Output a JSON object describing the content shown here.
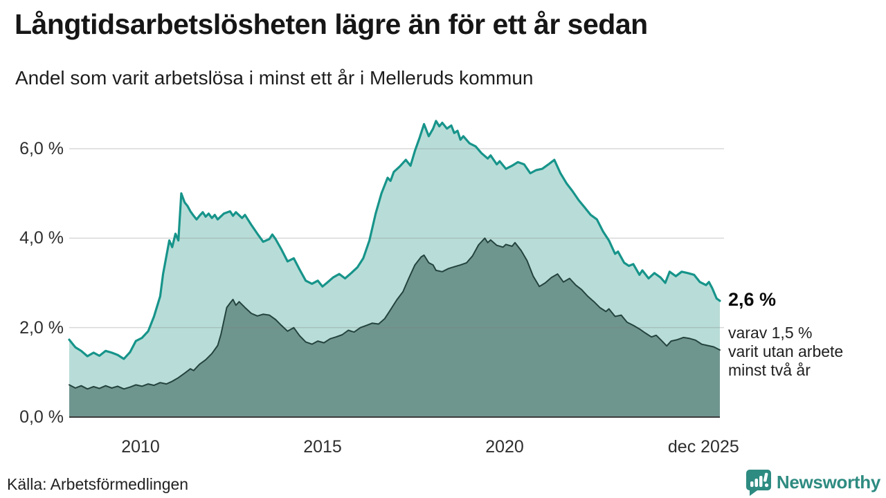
{
  "title": "Långtidsarbetslösheten lägre än för ett år sedan",
  "subtitle": "Andel som varit arbetslösa i minst ett år i Melleruds kommun",
  "source": "Källa: Arbetsförmedlingen",
  "branding": {
    "name": "Newsworthy",
    "color": "#2E8B81"
  },
  "annotation": {
    "value_label": "2,6 %",
    "detail_line1": "varav 1,5 %",
    "detail_line2": "varit utan arbete",
    "detail_line3": "minst två år"
  },
  "chart_data": {
    "type": "area",
    "title": "Långtidsarbetslösheten lägre än för ett år sedan",
    "subtitle": "Andel som varit arbetslösa i minst ett år i Melleruds kommun",
    "unit": "%",
    "grid": true,
    "legend": "none",
    "x_axis": {
      "range": [
        2008.04,
        2025.92
      ],
      "ticks": [
        {
          "t": 2010.0,
          "label": "2010"
        },
        {
          "t": 2015.0,
          "label": "2015"
        },
        {
          "t": 2020.0,
          "label": "2020"
        },
        {
          "t": 2025.92,
          "label": "dec 2025"
        }
      ]
    },
    "y_axis": {
      "range": [
        0,
        7
      ],
      "ticks": [
        {
          "v": 0,
          "label": "0,0 %"
        },
        {
          "v": 2,
          "label": "2,0 %"
        },
        {
          "v": 4,
          "label": "4,0 %"
        },
        {
          "v": 6,
          "label": "6,0 %"
        }
      ]
    },
    "series": [
      {
        "name": "Andel arbetslösa minst ett år",
        "line_color": "#17948A",
        "fill_color": "#B8DDD8",
        "line_width": 3.2,
        "end_value": 2.6,
        "points": [
          [
            2008.04,
            1.73
          ],
          [
            2008.21,
            1.56
          ],
          [
            2008.37,
            1.48
          ],
          [
            2008.54,
            1.36
          ],
          [
            2008.71,
            1.44
          ],
          [
            2008.87,
            1.37
          ],
          [
            2009.04,
            1.48
          ],
          [
            2009.21,
            1.44
          ],
          [
            2009.37,
            1.39
          ],
          [
            2009.54,
            1.3
          ],
          [
            2009.71,
            1.45
          ],
          [
            2009.87,
            1.7
          ],
          [
            2010.04,
            1.77
          ],
          [
            2010.21,
            1.92
          ],
          [
            2010.37,
            2.25
          ],
          [
            2010.54,
            2.7
          ],
          [
            2010.62,
            3.2
          ],
          [
            2010.71,
            3.6
          ],
          [
            2010.79,
            3.95
          ],
          [
            2010.87,
            3.8
          ],
          [
            2010.96,
            4.1
          ],
          [
            2011.04,
            3.95
          ],
          [
            2011.12,
            5.0
          ],
          [
            2011.21,
            4.8
          ],
          [
            2011.29,
            4.72
          ],
          [
            2011.37,
            4.6
          ],
          [
            2011.46,
            4.5
          ],
          [
            2011.54,
            4.42
          ],
          [
            2011.62,
            4.5
          ],
          [
            2011.71,
            4.58
          ],
          [
            2011.79,
            4.48
          ],
          [
            2011.87,
            4.55
          ],
          [
            2011.96,
            4.45
          ],
          [
            2012.04,
            4.52
          ],
          [
            2012.12,
            4.42
          ],
          [
            2012.29,
            4.55
          ],
          [
            2012.46,
            4.6
          ],
          [
            2012.54,
            4.5
          ],
          [
            2012.62,
            4.58
          ],
          [
            2012.79,
            4.45
          ],
          [
            2012.87,
            4.52
          ],
          [
            2013.04,
            4.3
          ],
          [
            2013.21,
            4.1
          ],
          [
            2013.37,
            3.92
          ],
          [
            2013.54,
            3.98
          ],
          [
            2013.62,
            4.08
          ],
          [
            2013.71,
            3.98
          ],
          [
            2013.87,
            3.75
          ],
          [
            2014.04,
            3.48
          ],
          [
            2014.21,
            3.55
          ],
          [
            2014.37,
            3.3
          ],
          [
            2014.54,
            3.05
          ],
          [
            2014.71,
            2.98
          ],
          [
            2014.87,
            3.05
          ],
          [
            2015.0,
            2.92
          ],
          [
            2015.12,
            3.0
          ],
          [
            2015.29,
            3.12
          ],
          [
            2015.46,
            3.2
          ],
          [
            2015.62,
            3.1
          ],
          [
            2015.79,
            3.22
          ],
          [
            2015.96,
            3.35
          ],
          [
            2016.12,
            3.55
          ],
          [
            2016.29,
            3.95
          ],
          [
            2016.46,
            4.55
          ],
          [
            2016.62,
            5.0
          ],
          [
            2016.79,
            5.35
          ],
          [
            2016.87,
            5.28
          ],
          [
            2016.96,
            5.48
          ],
          [
            2017.12,
            5.6
          ],
          [
            2017.29,
            5.75
          ],
          [
            2017.42,
            5.62
          ],
          [
            2017.54,
            5.95
          ],
          [
            2017.67,
            6.25
          ],
          [
            2017.79,
            6.55
          ],
          [
            2017.92,
            6.28
          ],
          [
            2018.04,
            6.45
          ],
          [
            2018.12,
            6.62
          ],
          [
            2018.21,
            6.5
          ],
          [
            2018.29,
            6.58
          ],
          [
            2018.42,
            6.45
          ],
          [
            2018.54,
            6.52
          ],
          [
            2018.62,
            6.35
          ],
          [
            2018.71,
            6.4
          ],
          [
            2018.79,
            6.2
          ],
          [
            2018.87,
            6.28
          ],
          [
            2019.04,
            6.12
          ],
          [
            2019.21,
            6.05
          ],
          [
            2019.37,
            5.9
          ],
          [
            2019.54,
            5.78
          ],
          [
            2019.62,
            5.85
          ],
          [
            2019.79,
            5.65
          ],
          [
            2019.87,
            5.72
          ],
          [
            2020.04,
            5.55
          ],
          [
            2020.21,
            5.62
          ],
          [
            2020.37,
            5.7
          ],
          [
            2020.54,
            5.65
          ],
          [
            2020.71,
            5.45
          ],
          [
            2020.87,
            5.52
          ],
          [
            2021.04,
            5.55
          ],
          [
            2021.21,
            5.65
          ],
          [
            2021.37,
            5.75
          ],
          [
            2021.54,
            5.45
          ],
          [
            2021.71,
            5.22
          ],
          [
            2021.87,
            5.05
          ],
          [
            2022.04,
            4.85
          ],
          [
            2022.21,
            4.68
          ],
          [
            2022.37,
            4.52
          ],
          [
            2022.54,
            4.42
          ],
          [
            2022.71,
            4.15
          ],
          [
            2022.87,
            3.95
          ],
          [
            2023.04,
            3.65
          ],
          [
            2023.12,
            3.7
          ],
          [
            2023.29,
            3.45
          ],
          [
            2023.42,
            3.38
          ],
          [
            2023.54,
            3.42
          ],
          [
            2023.71,
            3.18
          ],
          [
            2023.79,
            3.28
          ],
          [
            2023.96,
            3.1
          ],
          [
            2024.12,
            3.22
          ],
          [
            2024.29,
            3.12
          ],
          [
            2024.42,
            3.0
          ],
          [
            2024.54,
            3.25
          ],
          [
            2024.71,
            3.15
          ],
          [
            2024.87,
            3.25
          ],
          [
            2025.04,
            3.22
          ],
          [
            2025.21,
            3.18
          ],
          [
            2025.37,
            3.02
          ],
          [
            2025.54,
            2.95
          ],
          [
            2025.62,
            3.02
          ],
          [
            2025.71,
            2.88
          ],
          [
            2025.83,
            2.65
          ],
          [
            2025.92,
            2.6
          ]
        ]
      },
      {
        "name": "varav utan arbete minst två år",
        "line_color": "#24433E",
        "fill_color": "#6F958F",
        "line_width": 2,
        "end_value": 1.5,
        "points": [
          [
            2008.04,
            0.72
          ],
          [
            2008.21,
            0.65
          ],
          [
            2008.37,
            0.7
          ],
          [
            2008.54,
            0.63
          ],
          [
            2008.71,
            0.68
          ],
          [
            2008.87,
            0.64
          ],
          [
            2009.04,
            0.7
          ],
          [
            2009.21,
            0.65
          ],
          [
            2009.37,
            0.69
          ],
          [
            2009.54,
            0.63
          ],
          [
            2009.71,
            0.67
          ],
          [
            2009.87,
            0.72
          ],
          [
            2010.04,
            0.69
          ],
          [
            2010.21,
            0.74
          ],
          [
            2010.37,
            0.71
          ],
          [
            2010.54,
            0.77
          ],
          [
            2010.71,
            0.74
          ],
          [
            2010.87,
            0.8
          ],
          [
            2011.04,
            0.88
          ],
          [
            2011.21,
            0.98
          ],
          [
            2011.37,
            1.08
          ],
          [
            2011.46,
            1.04
          ],
          [
            2011.62,
            1.18
          ],
          [
            2011.79,
            1.28
          ],
          [
            2011.96,
            1.42
          ],
          [
            2012.12,
            1.6
          ],
          [
            2012.21,
            1.85
          ],
          [
            2012.29,
            2.15
          ],
          [
            2012.37,
            2.45
          ],
          [
            2012.46,
            2.55
          ],
          [
            2012.54,
            2.63
          ],
          [
            2012.62,
            2.5
          ],
          [
            2012.71,
            2.58
          ],
          [
            2012.87,
            2.45
          ],
          [
            2013.04,
            2.32
          ],
          [
            2013.21,
            2.26
          ],
          [
            2013.37,
            2.3
          ],
          [
            2013.54,
            2.28
          ],
          [
            2013.71,
            2.18
          ],
          [
            2013.87,
            2.05
          ],
          [
            2014.04,
            1.92
          ],
          [
            2014.21,
            2.0
          ],
          [
            2014.37,
            1.82
          ],
          [
            2014.54,
            1.68
          ],
          [
            2014.71,
            1.63
          ],
          [
            2014.87,
            1.7
          ],
          [
            2015.04,
            1.66
          ],
          [
            2015.21,
            1.75
          ],
          [
            2015.37,
            1.79
          ],
          [
            2015.54,
            1.84
          ],
          [
            2015.71,
            1.94
          ],
          [
            2015.87,
            1.9
          ],
          [
            2016.04,
            2.0
          ],
          [
            2016.21,
            2.05
          ],
          [
            2016.37,
            2.1
          ],
          [
            2016.54,
            2.08
          ],
          [
            2016.71,
            2.2
          ],
          [
            2016.87,
            2.4
          ],
          [
            2017.04,
            2.62
          ],
          [
            2017.21,
            2.8
          ],
          [
            2017.37,
            3.1
          ],
          [
            2017.54,
            3.4
          ],
          [
            2017.71,
            3.58
          ],
          [
            2017.79,
            3.62
          ],
          [
            2017.92,
            3.45
          ],
          [
            2018.04,
            3.4
          ],
          [
            2018.12,
            3.28
          ],
          [
            2018.29,
            3.25
          ],
          [
            2018.46,
            3.32
          ],
          [
            2018.62,
            3.36
          ],
          [
            2018.79,
            3.4
          ],
          [
            2018.96,
            3.45
          ],
          [
            2019.12,
            3.6
          ],
          [
            2019.29,
            3.85
          ],
          [
            2019.46,
            4.0
          ],
          [
            2019.54,
            3.9
          ],
          [
            2019.62,
            3.96
          ],
          [
            2019.79,
            3.84
          ],
          [
            2019.96,
            3.8
          ],
          [
            2020.04,
            3.86
          ],
          [
            2020.21,
            3.82
          ],
          [
            2020.29,
            3.9
          ],
          [
            2020.46,
            3.72
          ],
          [
            2020.62,
            3.5
          ],
          [
            2020.79,
            3.15
          ],
          [
            2020.96,
            2.92
          ],
          [
            2021.12,
            3.0
          ],
          [
            2021.29,
            3.12
          ],
          [
            2021.46,
            3.2
          ],
          [
            2021.62,
            3.02
          ],
          [
            2021.79,
            3.1
          ],
          [
            2021.96,
            2.95
          ],
          [
            2022.12,
            2.85
          ],
          [
            2022.29,
            2.7
          ],
          [
            2022.46,
            2.58
          ],
          [
            2022.62,
            2.45
          ],
          [
            2022.79,
            2.36
          ],
          [
            2022.87,
            2.42
          ],
          [
            2023.04,
            2.25
          ],
          [
            2023.21,
            2.28
          ],
          [
            2023.37,
            2.12
          ],
          [
            2023.54,
            2.05
          ],
          [
            2023.71,
            1.97
          ],
          [
            2023.87,
            1.88
          ],
          [
            2024.04,
            1.79
          ],
          [
            2024.17,
            1.83
          ],
          [
            2024.33,
            1.7
          ],
          [
            2024.46,
            1.59
          ],
          [
            2024.58,
            1.7
          ],
          [
            2024.75,
            1.73
          ],
          [
            2024.92,
            1.78
          ],
          [
            2025.08,
            1.76
          ],
          [
            2025.25,
            1.72
          ],
          [
            2025.42,
            1.63
          ],
          [
            2025.58,
            1.6
          ],
          [
            2025.75,
            1.57
          ],
          [
            2025.92,
            1.5
          ]
        ]
      }
    ]
  }
}
